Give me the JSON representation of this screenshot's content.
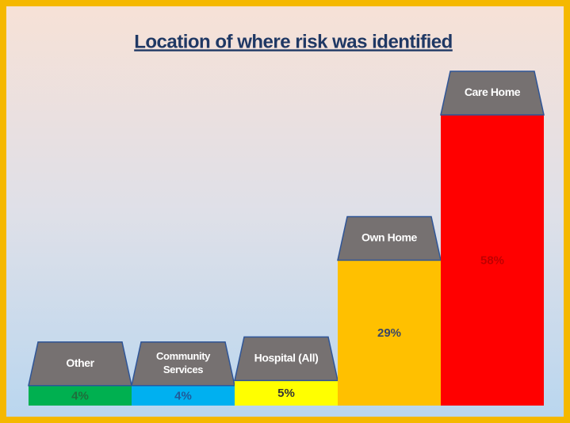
{
  "chart_data": {
    "type": "bar",
    "title": "Location of where risk was identified",
    "categories": [
      "Other",
      "Community Services",
      "Hospital (All)",
      "Own Home",
      "Care Home"
    ],
    "values": [
      4,
      4,
      5,
      29,
      58
    ],
    "value_labels": [
      "4%",
      "4%",
      "5%",
      "29%",
      "58%"
    ],
    "colors": [
      "#00b050",
      "#00b0f0",
      "#ffff00",
      "#ffc000",
      "#ff0000"
    ],
    "label_colors": [
      "#1f6e3c",
      "#1f5b9a",
      "#333333",
      "#3b4766",
      "#c00000"
    ]
  }
}
